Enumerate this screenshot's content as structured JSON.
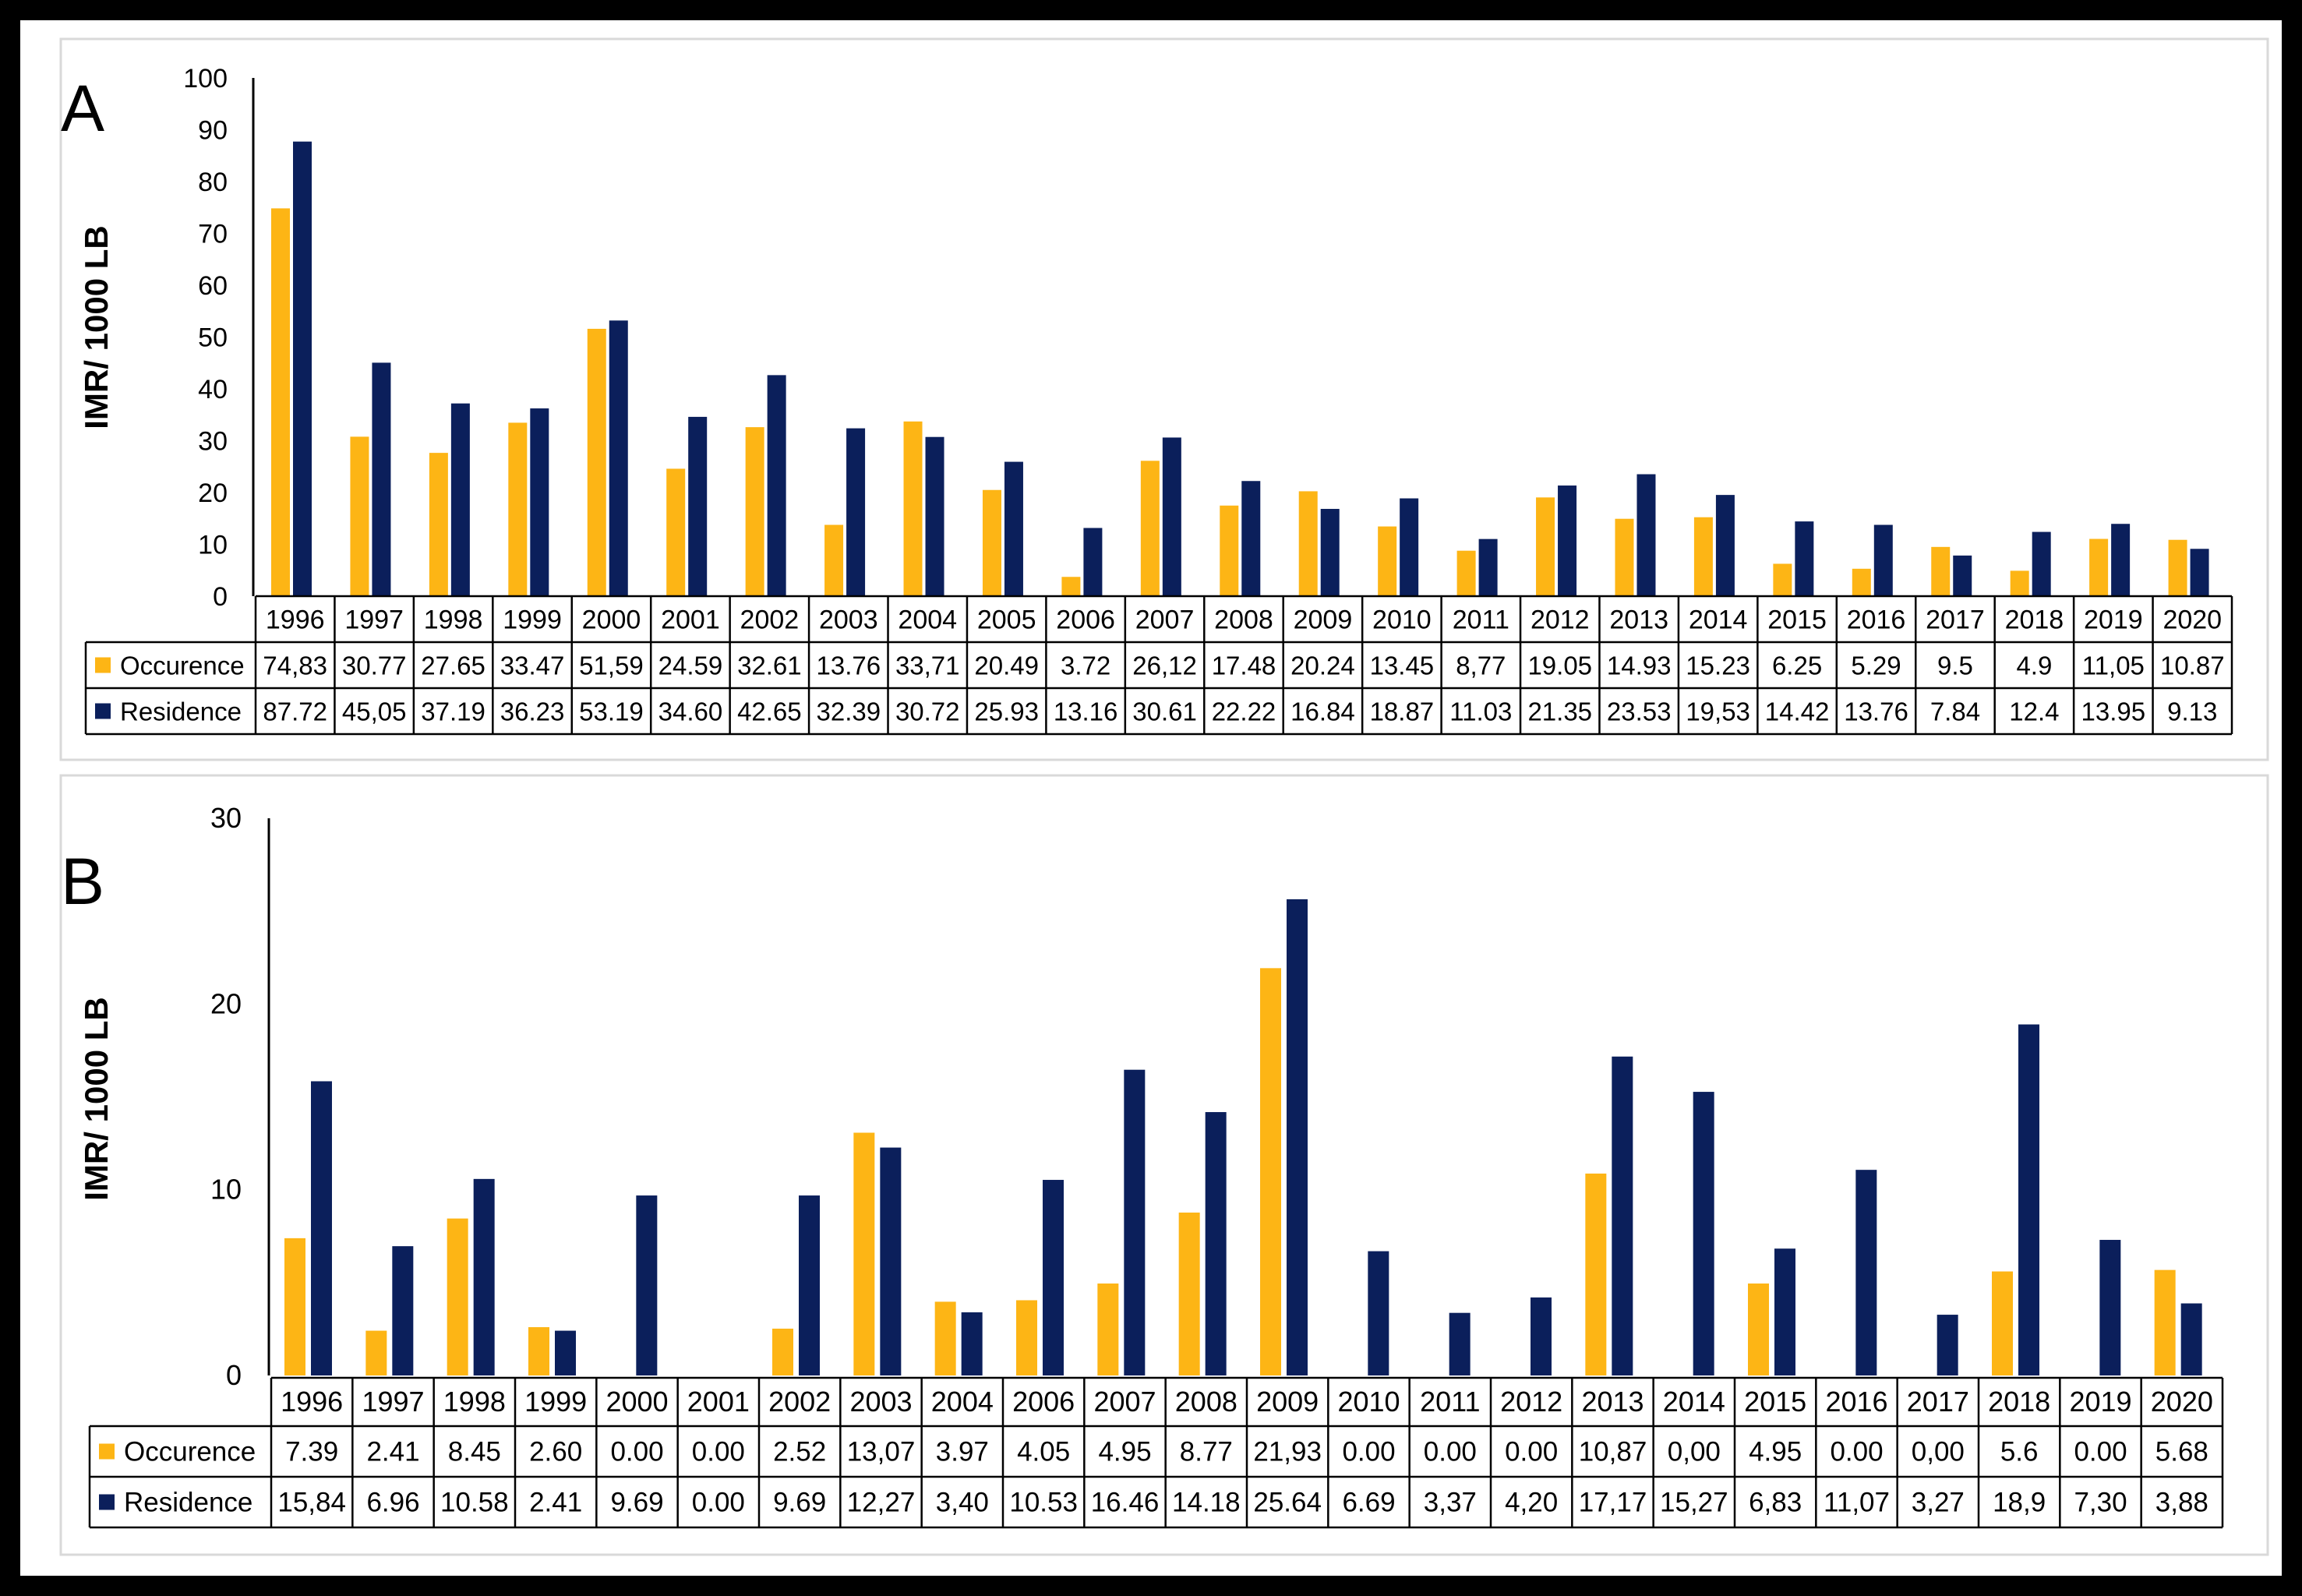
{
  "colors": {
    "occurrence": "#FDB515",
    "residence": "#0B1F5B",
    "axis": "#000000",
    "panel_border": "#D9D9D9"
  },
  "chart_data": [
    {
      "type": "bar",
      "panel_label": "A",
      "ylabel": "IMR/ 1000 LB",
      "ylim": [
        0,
        100
      ],
      "yticks": [
        "100",
        "90",
        "80",
        "70",
        "60",
        "50",
        "40",
        "30",
        "20",
        "10",
        "0"
      ],
      "categories": [
        "1996",
        "1997",
        "1998",
        "1999",
        "2000",
        "2001",
        "2002",
        "2003",
        "2004",
        "2005",
        "2006",
        "2007",
        "2008",
        "2009",
        "2010",
        "2011",
        "2012",
        "2013",
        "2014",
        "2015",
        "2016",
        "2017",
        "2018",
        "2019",
        "2020"
      ],
      "series": [
        {
          "name": "Occurence",
          "values": [
            74.83,
            30.77,
            27.65,
            33.47,
            51.59,
            24.59,
            32.61,
            13.76,
            33.71,
            20.49,
            3.72,
            26.12,
            17.48,
            20.24,
            13.45,
            8.77,
            19.05,
            14.93,
            15.23,
            6.25,
            5.29,
            9.5,
            4.9,
            11.05,
            10.87
          ],
          "labels": [
            "74,83",
            "30.77",
            "27.65",
            "33.47",
            "51,59",
            "24.59",
            "32.61",
            "13.76",
            "33,71",
            "20.49",
            "3.72",
            "26,12",
            "17.48",
            "20.24",
            "13.45",
            "8,77",
            "19.05",
            "14.93",
            "15.23",
            "6.25",
            "5.29",
            "9.5",
            "4.9",
            "11,05",
            "10.87"
          ]
        },
        {
          "name": "Residence",
          "values": [
            87.72,
            45.05,
            37.19,
            36.23,
            53.19,
            34.6,
            42.65,
            32.39,
            30.72,
            25.93,
            13.16,
            30.61,
            22.22,
            16.84,
            18.87,
            11.03,
            21.35,
            23.53,
            19.53,
            14.42,
            13.76,
            7.84,
            12.4,
            13.95,
            9.13
          ],
          "labels": [
            "87.72",
            "45,05",
            "37.19",
            "36.23",
            "53.19",
            "34.60",
            "42.65",
            "32.39",
            "30.72",
            "25.93",
            "13.16",
            "30.61",
            "22.22",
            "16.84",
            "18.87",
            "11.03",
            "21.35",
            "23.53",
            "19,53",
            "14.42",
            "13.76",
            "7.84",
            "12.4",
            "13.95",
            "9.13"
          ]
        }
      ]
    },
    {
      "type": "bar",
      "panel_label": "B",
      "ylabel": "IMR/ 1000 LB",
      "ylim": [
        0,
        30
      ],
      "yticks": [
        "30",
        "20",
        "10",
        "0"
      ],
      "categories": [
        "1996",
        "1997",
        "1998",
        "1999",
        "2000",
        "2001",
        "2002",
        "2003",
        "2004",
        "2006",
        "2007",
        "2008",
        "2009",
        "2010",
        "2011",
        "2012",
        "2013",
        "2014",
        "2015",
        "2016",
        "2017",
        "2018",
        "2019",
        "2020"
      ],
      "series": [
        {
          "name": "Occurence",
          "values": [
            7.39,
            2.41,
            8.45,
            2.6,
            0,
            0,
            2.52,
            13.07,
            3.97,
            4.05,
            4.95,
            8.77,
            21.93,
            0,
            0,
            0,
            10.87,
            0,
            4.95,
            0,
            0,
            5.6,
            0,
            5.68
          ],
          "labels": [
            "7.39",
            "2.41",
            "8.45",
            "2.60",
            "0.00",
            "0.00",
            "2.52",
            "13,07",
            "3.97",
            "4.05",
            "4.95",
            "8.77",
            "21,93",
            "0.00",
            "0.00",
            "0.00",
            "10,87",
            "0,00",
            "4.95",
            "0.00",
            "0,00",
            "5.6",
            "0.00",
            "5.68"
          ]
        },
        {
          "name": "Residence",
          "values": [
            15.84,
            6.96,
            10.58,
            2.41,
            9.69,
            0,
            9.69,
            12.27,
            3.4,
            10.53,
            16.46,
            14.18,
            25.64,
            6.69,
            3.37,
            4.2,
            17.17,
            15.27,
            6.83,
            11.07,
            3.27,
            18.9,
            7.3,
            3.88
          ],
          "labels": [
            "15,84",
            "6.96",
            "10.58",
            "2.41",
            "9.69",
            "0.00",
            "9.69",
            "12,27",
            "3,40",
            "10.53",
            "16.46",
            "14.18",
            "25.64",
            "6.69",
            "3,37",
            "4,20",
            "17,17",
            "15,27",
            "6,83",
            "11,07",
            "3,27",
            "18,9",
            "7,30",
            "3,88"
          ]
        }
      ]
    }
  ]
}
